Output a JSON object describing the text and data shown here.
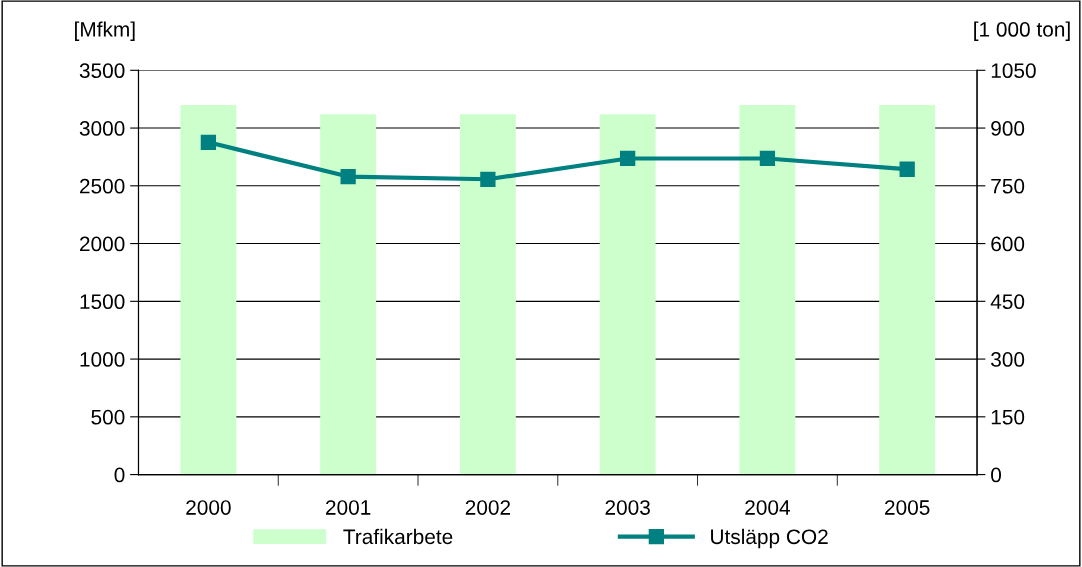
{
  "chart_data": {
    "type": "bar",
    "ylabel": "[Mfkm]",
    "y2label": "[1 000 ton]",
    "categories": [
      "2000",
      "2001",
      "2002",
      "2003",
      "2004",
      "2005"
    ],
    "series": [
      {
        "name": "Trafikarbete",
        "color": "#ccffcc",
        "values": [
          3200,
          3120,
          3120,
          3120,
          3200,
          3200
        ]
      },
      {
        "name": "Utsläpp CO2",
        "type": "line",
        "axis": "y2",
        "color": "#008080",
        "marker": "square",
        "values": [
          863,
          774,
          767,
          821,
          821,
          793
        ]
      }
    ],
    "ylim": [
      0,
      3500
    ],
    "yticks": [
      0,
      500,
      1000,
      1500,
      2000,
      2500,
      3000,
      3500
    ],
    "y2lim": [
      0,
      1050
    ],
    "y2ticks": [
      0,
      150,
      300,
      450,
      600,
      750,
      900,
      1050
    ],
    "grid": "y",
    "legend": "bottom"
  }
}
